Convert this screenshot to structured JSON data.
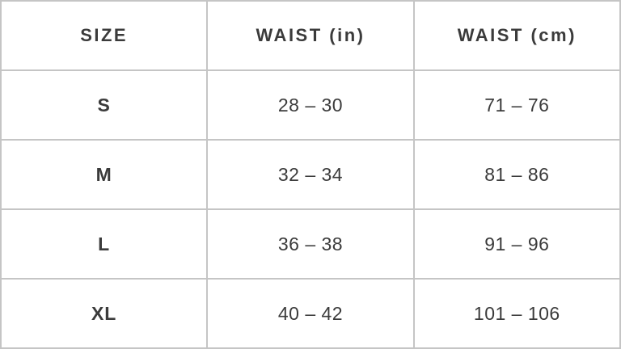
{
  "table": {
    "columns": [
      {
        "label": "SIZE"
      },
      {
        "label": "WAIST (in)"
      },
      {
        "label": "WAIST (cm)"
      }
    ],
    "rows": [
      {
        "size": "S",
        "waist_in": "28 – 30",
        "waist_cm": "71 – 76"
      },
      {
        "size": "M",
        "waist_in": "32 – 34",
        "waist_cm": "81 – 86"
      },
      {
        "size": "L",
        "waist_in": "36 – 38",
        "waist_cm": "91 – 96"
      },
      {
        "size": "XL",
        "waist_in": "40 – 42",
        "waist_cm": "101 – 106"
      }
    ],
    "colors": {
      "border": "#c5c5c5",
      "text": "#3b3b3b",
      "background": "#ffffff"
    }
  }
}
